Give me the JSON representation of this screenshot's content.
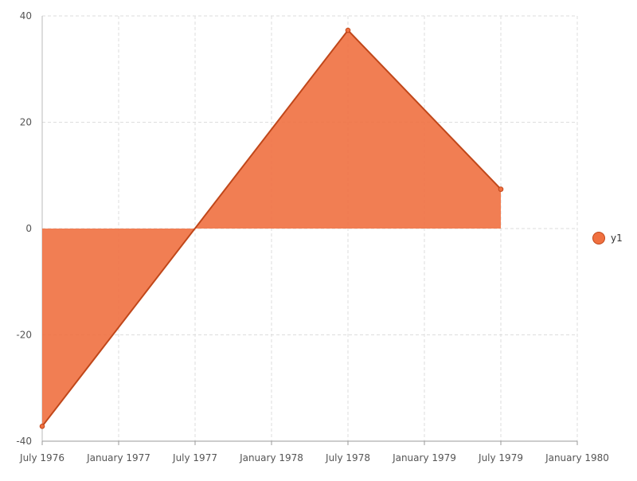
{
  "chart_data": {
    "type": "area",
    "title": "",
    "xlabel": "",
    "ylabel": "",
    "x_ticks": [
      "July 1976",
      "January 1977",
      "July 1977",
      "January 1978",
      "July 1978",
      "January 1979",
      "July 1979",
      "January 1980"
    ],
    "y_ticks": [
      "40",
      "20",
      "0",
      "-20",
      "-40"
    ],
    "ylim": [
      -40,
      40
    ],
    "xlim": [
      "1976-07",
      "1980-01"
    ],
    "grid": true,
    "legend_position": "right",
    "series": [
      {
        "name": "y1",
        "color": "#f07040",
        "line_color": "#c0471a",
        "points": [
          {
            "x": "1976-07",
            "y": -37.2
          },
          {
            "x": "1978-07",
            "y": 37.3
          },
          {
            "x": "1979-07",
            "y": 7.4
          }
        ]
      }
    ]
  }
}
